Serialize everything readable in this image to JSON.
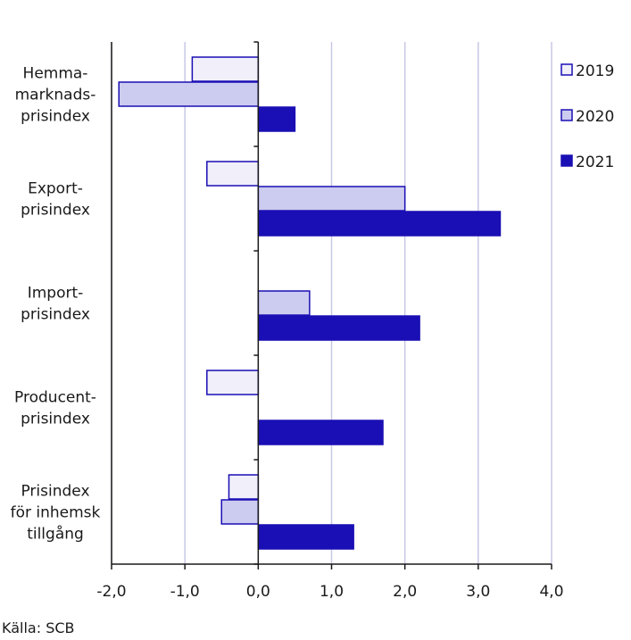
{
  "chart_data": {
    "type": "bar",
    "orientation": "horizontal",
    "categories": [
      [
        "Hemma-",
        "marknads-",
        "prisindex"
      ],
      [
        "Export-",
        "prisindex"
      ],
      [
        "Import-",
        "prisindex"
      ],
      [
        "Producent-",
        "prisindex"
      ],
      [
        "Prisindex",
        "för inhemsk",
        "tillgång"
      ]
    ],
    "series": [
      {
        "name": "2019",
        "values": [
          -0.9,
          -0.7,
          0.0,
          -0.7,
          -0.4
        ],
        "color": "#f0effa"
      },
      {
        "name": "2020",
        "values": [
          -1.9,
          2.0,
          0.7,
          0.0,
          -0.5
        ],
        "color": "#cccbf0"
      },
      {
        "name": "2021",
        "values": [
          0.5,
          3.3,
          2.2,
          1.7,
          1.3
        ],
        "color": "#1a0fb4"
      }
    ],
    "xlim": [
      -2.0,
      4.0
    ],
    "xticks": [
      -2.0,
      -1.0,
      0.0,
      1.0,
      2.0,
      3.0,
      4.0
    ],
    "xtick_labels": [
      "-2,0",
      "-1,0",
      "0,0",
      "1,0",
      "2,0",
      "3,0",
      "4,0"
    ],
    "grid": true,
    "legend_position": "top-right",
    "title": "",
    "xlabel": "",
    "ylabel": ""
  },
  "source": "Källa: SCB",
  "colors": {
    "axis": "#1a1a1a",
    "grid": "#c8c7e6",
    "bar_stroke": "#1a0fb4"
  }
}
